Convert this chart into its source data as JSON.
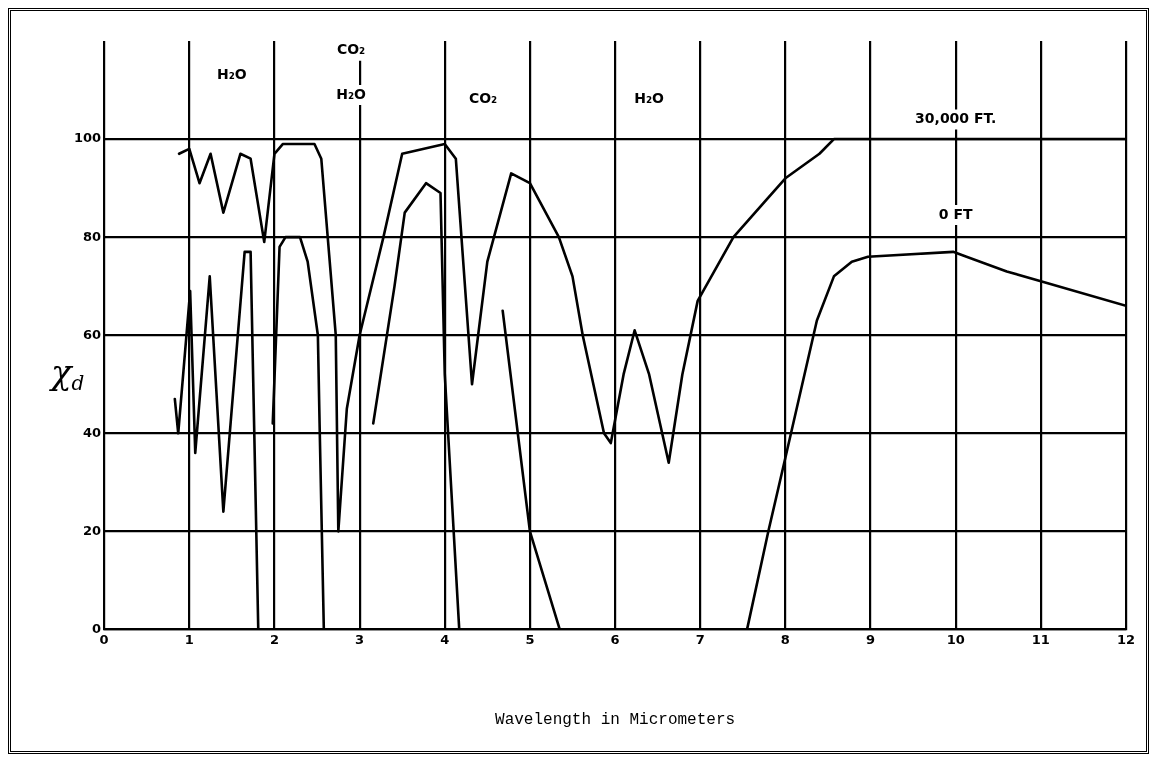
{
  "chart_data": {
    "type": "line",
    "xlabel": "Wavelength in Micrometers",
    "ylabel": "χ$_{d}$",
    "xlim": [
      0,
      12
    ],
    "xticks": [
      0,
      1,
      2,
      3,
      4,
      5,
      6,
      7,
      8,
      9,
      10,
      11,
      12
    ],
    "ylim": [
      0,
      120
    ],
    "yticks": [
      0,
      20,
      40,
      60,
      80,
      100
    ],
    "grid": true,
    "legend": false,
    "marker": "none",
    "line_style": "solid",
    "series": [
      {
        "color": "#000000",
        "x": [
          0.88,
          1.0,
          1.12,
          1.25,
          1.4,
          1.6,
          1.72,
          1.88,
          2.0,
          2.1,
          2.47,
          2.55,
          2.72,
          2.75,
          2.85,
          3.0,
          3.28,
          3.5,
          4.0,
          4.13,
          4.32,
          4.5,
          4.78,
          5.0,
          5.34,
          5.5,
          5.62,
          5.87,
          5.95,
          6.1,
          6.23,
          6.4,
          6.63,
          6.79,
          6.97,
          7.39,
          8.0,
          8.4,
          8.57,
          9,
          10,
          11,
          12
        ],
        "values": [
          97,
          98,
          91,
          97,
          85,
          97,
          96,
          79,
          97,
          99,
          99,
          96,
          60,
          20,
          45,
          60,
          80,
          97,
          99,
          96,
          50,
          75,
          93,
          91,
          80,
          72,
          60,
          40,
          38,
          52,
          61,
          52,
          34,
          52,
          67,
          80,
          92,
          97,
          100,
          100,
          100,
          100,
          100
        ]
      },
      {
        "color": "#000000",
        "x": [
          0.83,
          0.87,
          1.01,
          1.07,
          1.24,
          1.4,
          1.65,
          1.72,
          1.81,
          1.93,
          1.98,
          2.06,
          2.13,
          2.3,
          2.39,
          2.51,
          2.53,
          2.58,
          2.98,
          3.16,
          3.41,
          3.53,
          3.78,
          3.95,
          4.0,
          4.17,
          4.45,
          4.68,
          5.0,
          5.35,
          7.5,
          7.55,
          7.8,
          8.0,
          8.37,
          8.57,
          8.78,
          8.97,
          9.97,
          10.6,
          11,
          12
        ],
        "values": [
          47,
          40,
          69,
          36,
          72,
          24,
          77,
          77,
          0,
          null,
          42,
          78,
          80,
          80,
          75,
          60,
          42,
          0,
          null,
          42,
          70,
          85,
          91,
          89,
          52,
          0,
          null,
          65,
          20,
          0,
          null,
          0,
          20,
          35,
          63,
          72,
          75,
          76,
          77,
          73,
          71,
          66
        ]
      }
    ],
    "annotations": [
      "H₂O",
      "CO₂",
      "H₂O",
      "CO₂",
      "H₂O",
      "30,000 FT.",
      "0 FT"
    ]
  }
}
